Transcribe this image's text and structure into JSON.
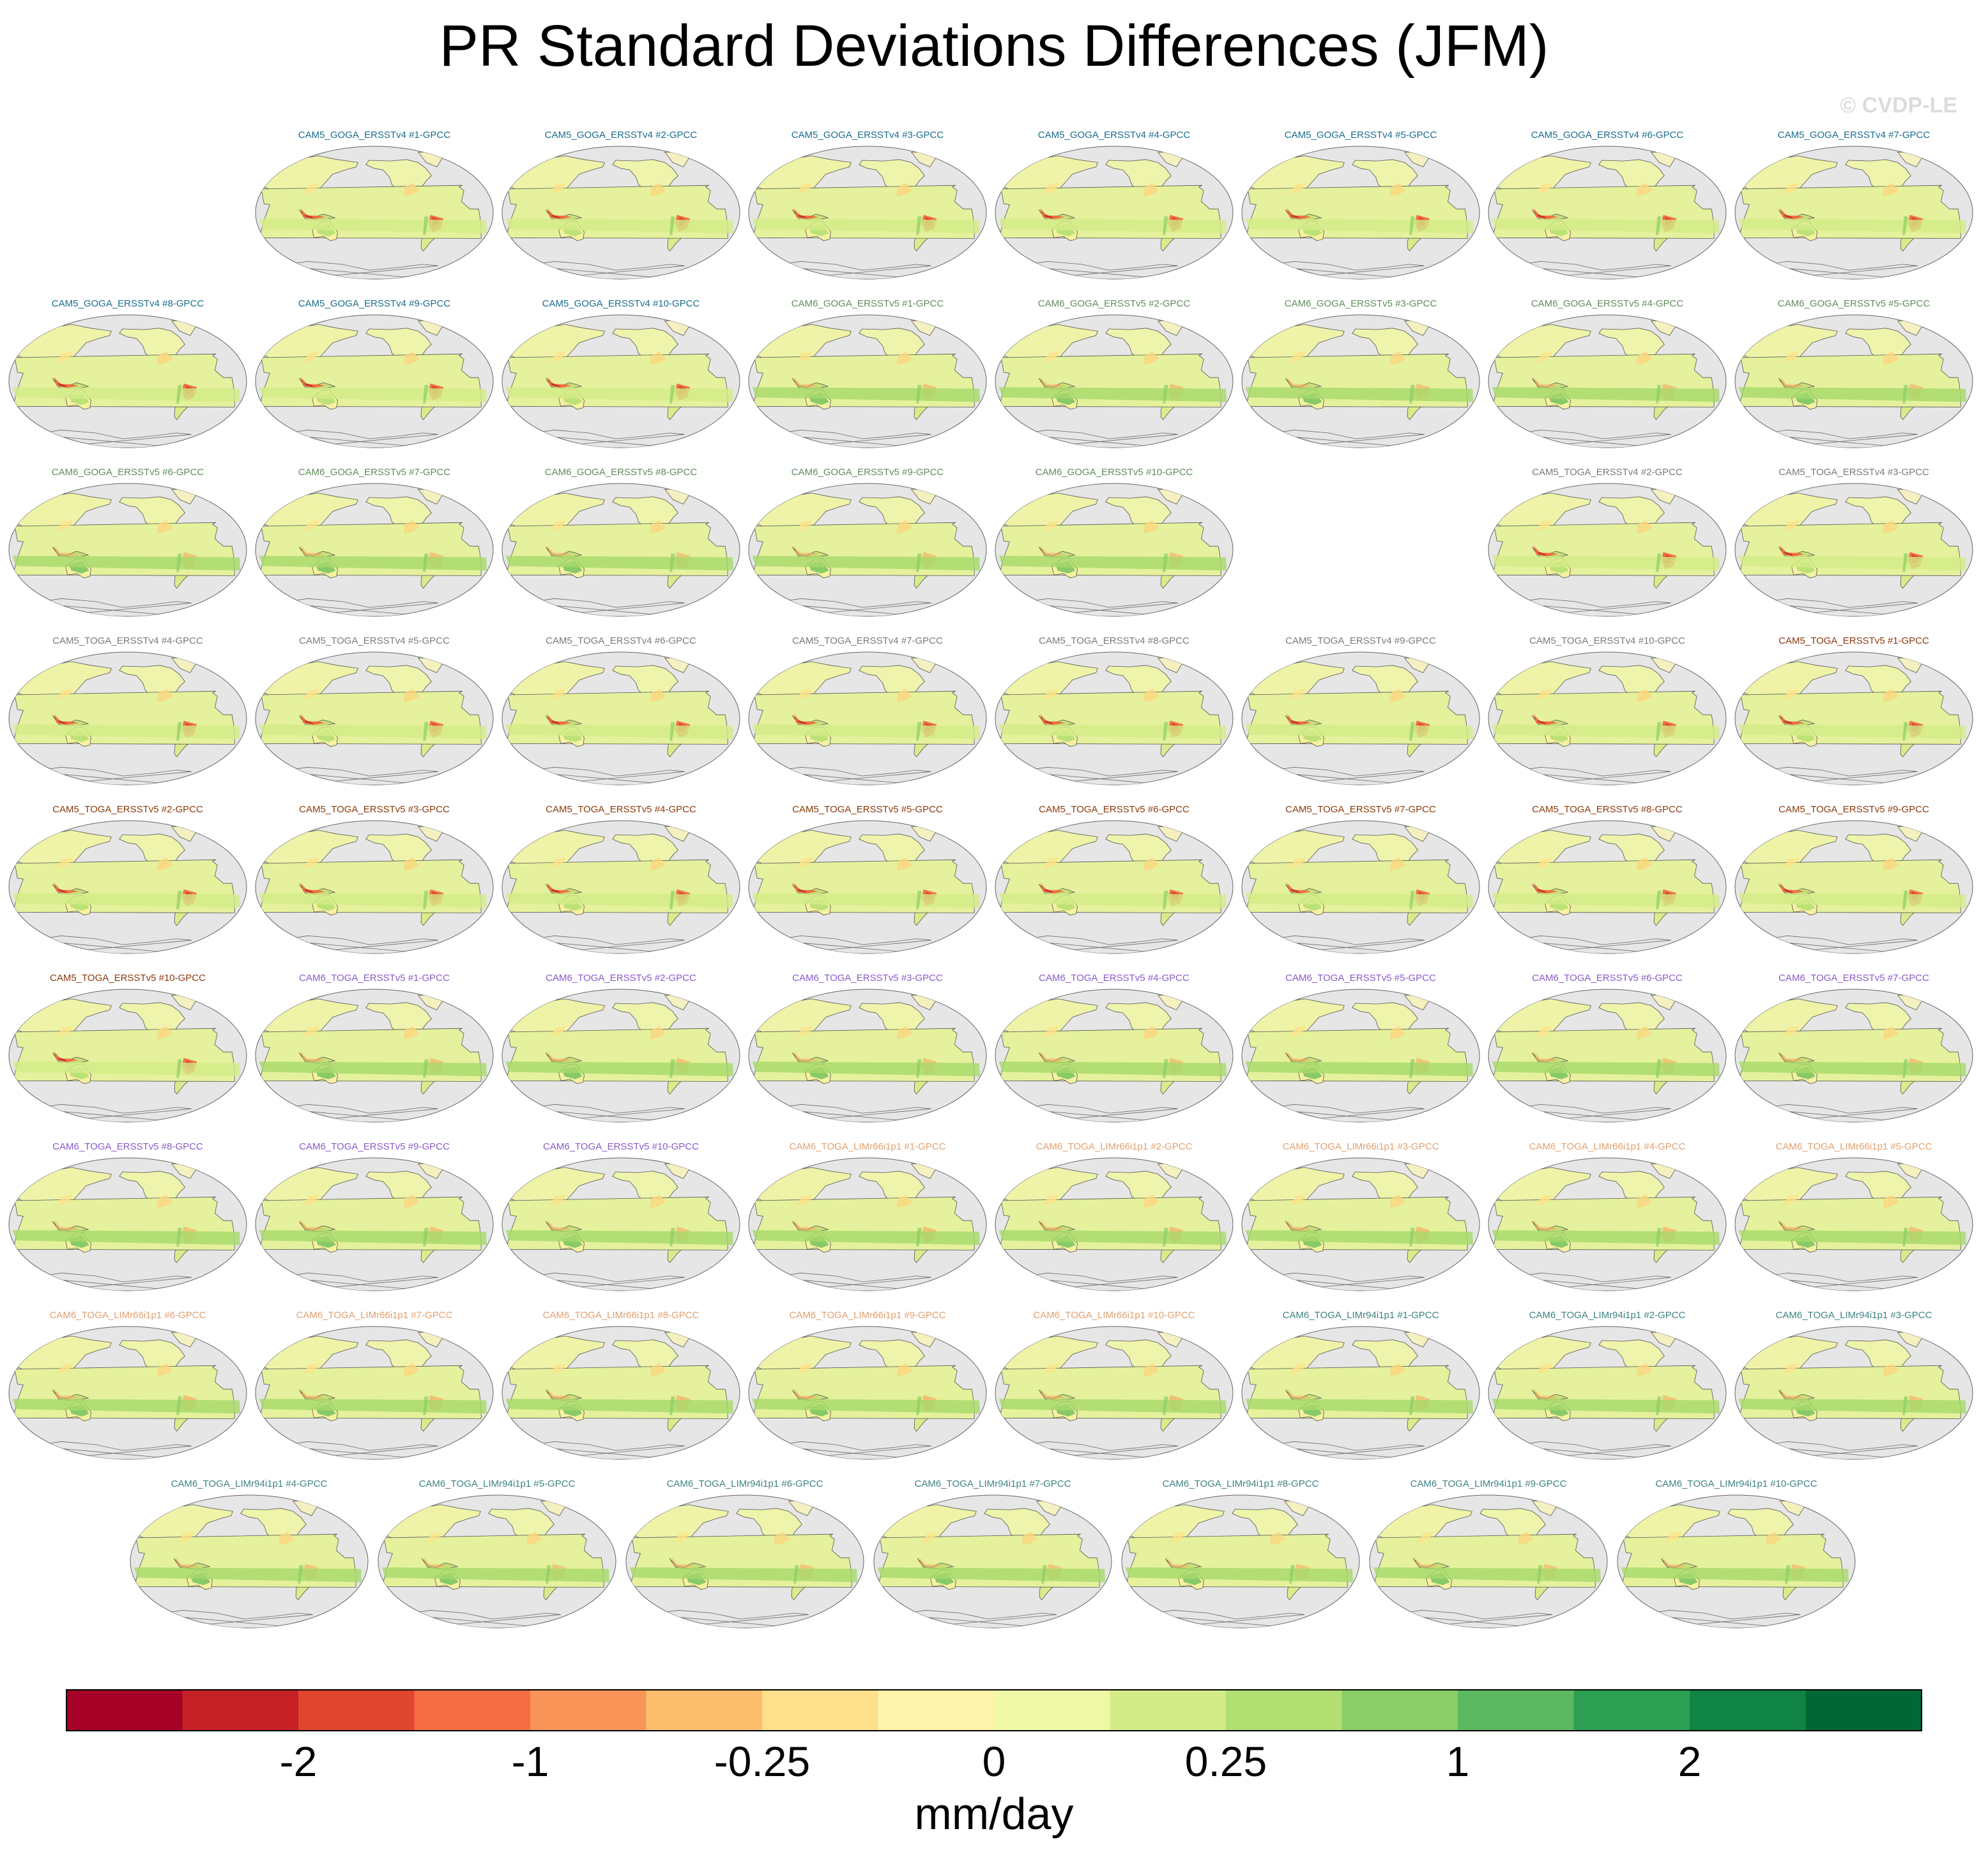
{
  "title": "PR Standard Deviations Differences (JFM)",
  "copyright": "© CVDP-LE",
  "chart_data": {
    "type": "map-panels",
    "title": "PR Standard Deviations Differences (JFM)",
    "colorbar": {
      "units": "mm/day",
      "tick_labels": [
        "-2",
        "-1",
        "-0.25",
        "0",
        "0.25",
        "1",
        "2"
      ],
      "colors": [
        "#a50026",
        "#c52126",
        "#e04530",
        "#f46d43",
        "#f99558",
        "#fdbe6e",
        "#fee08b",
        "#fff3ac",
        "#eff8a6",
        "#d3ec87",
        "#b3df72",
        "#8bcd67",
        "#5db961",
        "#2c9f53",
        "#0f8445",
        "#006837"
      ]
    },
    "palettes": {
      "c5goga4": "#1a6c8c",
      "c6goga5": "#5f8c5a",
      "c5toga4": "#7a7a7a",
      "c5toga5": "#8a3a0c",
      "c6toga5": "#8a5ac8",
      "c6lim66": "#e0a070",
      "c6lim94": "#3e8282"
    },
    "panels": [
      {
        "label": "CAM5_GOGA_ERSSTv4 #1-GPCC",
        "color": "#1a6c8c",
        "dry": 0.85
      },
      {
        "label": "CAM5_GOGA_ERSSTv4 #2-GPCC",
        "color": "#1a6c8c",
        "dry": 0.85
      },
      {
        "label": "CAM5_GOGA_ERSSTv4 #3-GPCC",
        "color": "#1a6c8c",
        "dry": 0.85
      },
      {
        "label": "CAM5_GOGA_ERSSTv4 #4-GPCC",
        "color": "#1a6c8c",
        "dry": 0.85
      },
      {
        "label": "CAM5_GOGA_ERSSTv4 #5-GPCC",
        "color": "#1a6c8c",
        "dry": 0.85
      },
      {
        "label": "CAM5_GOGA_ERSSTv4 #6-GPCC",
        "color": "#1a6c8c",
        "dry": 0.85
      },
      {
        "label": "CAM5_GOGA_ERSSTv4 #7-GPCC",
        "color": "#1a6c8c",
        "dry": 0.85
      },
      {
        "label": "CAM5_GOGA_ERSSTv4 #8-GPCC",
        "color": "#1a6c8c",
        "dry": 0.85
      },
      {
        "label": "CAM5_GOGA_ERSSTv4 #9-GPCC",
        "color": "#1a6c8c",
        "dry": 0.85
      },
      {
        "label": "CAM5_GOGA_ERSSTv4 #10-GPCC",
        "color": "#1a6c8c",
        "dry": 0.85
      },
      {
        "label": "CAM6_GOGA_ERSSTv5 #1-GPCC",
        "color": "#5f8c5a",
        "dry": 0.45
      },
      {
        "label": "CAM6_GOGA_ERSSTv5 #2-GPCC",
        "color": "#5f8c5a",
        "dry": 0.45
      },
      {
        "label": "CAM6_GOGA_ERSSTv5 #3-GPCC",
        "color": "#5f8c5a",
        "dry": 0.45
      },
      {
        "label": "CAM6_GOGA_ERSSTv5 #4-GPCC",
        "color": "#5f8c5a",
        "dry": 0.45
      },
      {
        "label": "CAM6_GOGA_ERSSTv5 #5-GPCC",
        "color": "#5f8c5a",
        "dry": 0.45
      },
      {
        "label": "CAM6_GOGA_ERSSTv5 #6-GPCC",
        "color": "#5f8c5a",
        "dry": 0.45
      },
      {
        "label": "CAM6_GOGA_ERSSTv5 #7-GPCC",
        "color": "#5f8c5a",
        "dry": 0.45
      },
      {
        "label": "CAM6_GOGA_ERSSTv5 #8-GPCC",
        "color": "#5f8c5a",
        "dry": 0.45
      },
      {
        "label": "CAM6_GOGA_ERSSTv5 #9-GPCC",
        "color": "#5f8c5a",
        "dry": 0.45
      },
      {
        "label": "CAM6_GOGA_ERSSTv5 #10-GPCC",
        "color": "#5f8c5a",
        "dry": 0.45
      },
      {
        "label": "CAM5_TOGA_ERSSTv4 #2-GPCC",
        "color": "#7a7a7a",
        "dry": 0.85
      },
      {
        "label": "CAM5_TOGA_ERSSTv4 #3-GPCC",
        "color": "#7a7a7a",
        "dry": 0.85
      },
      {
        "label": "CAM5_TOGA_ERSSTv4 #4-GPCC",
        "color": "#7a7a7a",
        "dry": 0.85
      },
      {
        "label": "CAM5_TOGA_ERSSTv4 #5-GPCC",
        "color": "#7a7a7a",
        "dry": 0.85
      },
      {
        "label": "CAM5_TOGA_ERSSTv4 #6-GPCC",
        "color": "#7a7a7a",
        "dry": 0.85
      },
      {
        "label": "CAM5_TOGA_ERSSTv4 #7-GPCC",
        "color": "#7a7a7a",
        "dry": 0.85
      },
      {
        "label": "CAM5_TOGA_ERSSTv4 #8-GPCC",
        "color": "#7a7a7a",
        "dry": 0.85
      },
      {
        "label": "CAM5_TOGA_ERSSTv4 #9-GPCC",
        "color": "#7a7a7a",
        "dry": 0.85
      },
      {
        "label": "CAM5_TOGA_ERSSTv4 #10-GPCC",
        "color": "#7a7a7a",
        "dry": 0.85
      },
      {
        "label": "CAM5_TOGA_ERSSTv5 #1-GPCC",
        "color": "#8a3a0c",
        "dry": 0.8
      },
      {
        "label": "CAM5_TOGA_ERSSTv5 #2-GPCC",
        "color": "#8a3a0c",
        "dry": 0.8
      },
      {
        "label": "CAM5_TOGA_ERSSTv5 #3-GPCC",
        "color": "#8a3a0c",
        "dry": 0.8
      },
      {
        "label": "CAM5_TOGA_ERSSTv5 #4-GPCC",
        "color": "#8a3a0c",
        "dry": 0.8
      },
      {
        "label": "CAM5_TOGA_ERSSTv5 #5-GPCC",
        "color": "#8a3a0c",
        "dry": 0.8
      },
      {
        "label": "CAM5_TOGA_ERSSTv5 #6-GPCC",
        "color": "#8a3a0c",
        "dry": 0.8
      },
      {
        "label": "CAM5_TOGA_ERSSTv5 #7-GPCC",
        "color": "#8a3a0c",
        "dry": 0.8
      },
      {
        "label": "CAM5_TOGA_ERSSTv5 #8-GPCC",
        "color": "#8a3a0c",
        "dry": 0.8
      },
      {
        "label": "CAM5_TOGA_ERSSTv5 #9-GPCC",
        "color": "#8a3a0c",
        "dry": 0.8
      },
      {
        "label": "CAM5_TOGA_ERSSTv5 #10-GPCC",
        "color": "#8a3a0c",
        "dry": 0.8
      },
      {
        "label": "CAM6_TOGA_ERSSTv5 #1-GPCC",
        "color": "#8a5ac8",
        "dry": 0.45
      },
      {
        "label": "CAM6_TOGA_ERSSTv5 #2-GPCC",
        "color": "#8a5ac8",
        "dry": 0.45
      },
      {
        "label": "CAM6_TOGA_ERSSTv5 #3-GPCC",
        "color": "#8a5ac8",
        "dry": 0.45
      },
      {
        "label": "CAM6_TOGA_ERSSTv5 #4-GPCC",
        "color": "#8a5ac8",
        "dry": 0.45
      },
      {
        "label": "CAM6_TOGA_ERSSTv5 #5-GPCC",
        "color": "#8a5ac8",
        "dry": 0.45
      },
      {
        "label": "CAM6_TOGA_ERSSTv5 #6-GPCC",
        "color": "#8a5ac8",
        "dry": 0.45
      },
      {
        "label": "CAM6_TOGA_ERSSTv5 #7-GPCC",
        "color": "#8a5ac8",
        "dry": 0.45
      },
      {
        "label": "CAM6_TOGA_ERSSTv5 #8-GPCC",
        "color": "#8a5ac8",
        "dry": 0.45
      },
      {
        "label": "CAM6_TOGA_ERSSTv5 #9-GPCC",
        "color": "#8a5ac8",
        "dry": 0.45
      },
      {
        "label": "CAM6_TOGA_ERSSTv5 #10-GPCC",
        "color": "#8a5ac8",
        "dry": 0.45
      },
      {
        "label": "CAM6_TOGA_LIMr66i1p1 #1-GPCC",
        "color": "#e0a070",
        "dry": 0.5
      },
      {
        "label": "CAM6_TOGA_LIMr66i1p1 #2-GPCC",
        "color": "#e0a070",
        "dry": 0.5
      },
      {
        "label": "CAM6_TOGA_LIMr66i1p1 #3-GPCC",
        "color": "#e0a070",
        "dry": 0.5
      },
      {
        "label": "CAM6_TOGA_LIMr66i1p1 #4-GPCC",
        "color": "#e0a070",
        "dry": 0.5
      },
      {
        "label": "CAM6_TOGA_LIMr66i1p1 #5-GPCC",
        "color": "#e0a070",
        "dry": 0.5
      },
      {
        "label": "CAM6_TOGA_LIMr66i1p1 #6-GPCC",
        "color": "#e0a070",
        "dry": 0.5
      },
      {
        "label": "CAM6_TOGA_LIMr66i1p1 #7-GPCC",
        "color": "#e0a070",
        "dry": 0.5
      },
      {
        "label": "CAM6_TOGA_LIMr66i1p1 #8-GPCC",
        "color": "#e0a070",
        "dry": 0.5
      },
      {
        "label": "CAM6_TOGA_LIMr66i1p1 #9-GPCC",
        "color": "#e0a070",
        "dry": 0.5
      },
      {
        "label": "CAM6_TOGA_LIMr66i1p1 #10-GPCC",
        "color": "#e0a070",
        "dry": 0.5
      },
      {
        "label": "CAM6_TOGA_LIMr94i1p1 #1-GPCC",
        "color": "#3e8282",
        "dry": 0.45
      },
      {
        "label": "CAM6_TOGA_LIMr94i1p1 #2-GPCC",
        "color": "#3e8282",
        "dry": 0.45
      },
      {
        "label": "CAM6_TOGA_LIMr94i1p1 #3-GPCC",
        "color": "#3e8282",
        "dry": 0.45
      },
      {
        "label": "CAM6_TOGA_LIMr94i1p1 #4-GPCC",
        "color": "#3e8282",
        "dry": 0.4
      },
      {
        "label": "CAM6_TOGA_LIMr94i1p1 #5-GPCC",
        "color": "#3e8282",
        "dry": 0.4
      },
      {
        "label": "CAM6_TOGA_LIMr94i1p1 #6-GPCC",
        "color": "#3e8282",
        "dry": 0.4
      },
      {
        "label": "CAM6_TOGA_LIMr94i1p1 #7-GPCC",
        "color": "#3e8282",
        "dry": 0.4
      },
      {
        "label": "CAM6_TOGA_LIMr94i1p1 #8-GPCC",
        "color": "#3e8282",
        "dry": 0.4
      },
      {
        "label": "CAM6_TOGA_LIMr94i1p1 #9-GPCC",
        "color": "#3e8282",
        "dry": 0.4
      },
      {
        "label": "CAM6_TOGA_LIMr94i1p1 #10-GPCC",
        "color": "#3e8282",
        "dry": 0.4
      }
    ]
  }
}
